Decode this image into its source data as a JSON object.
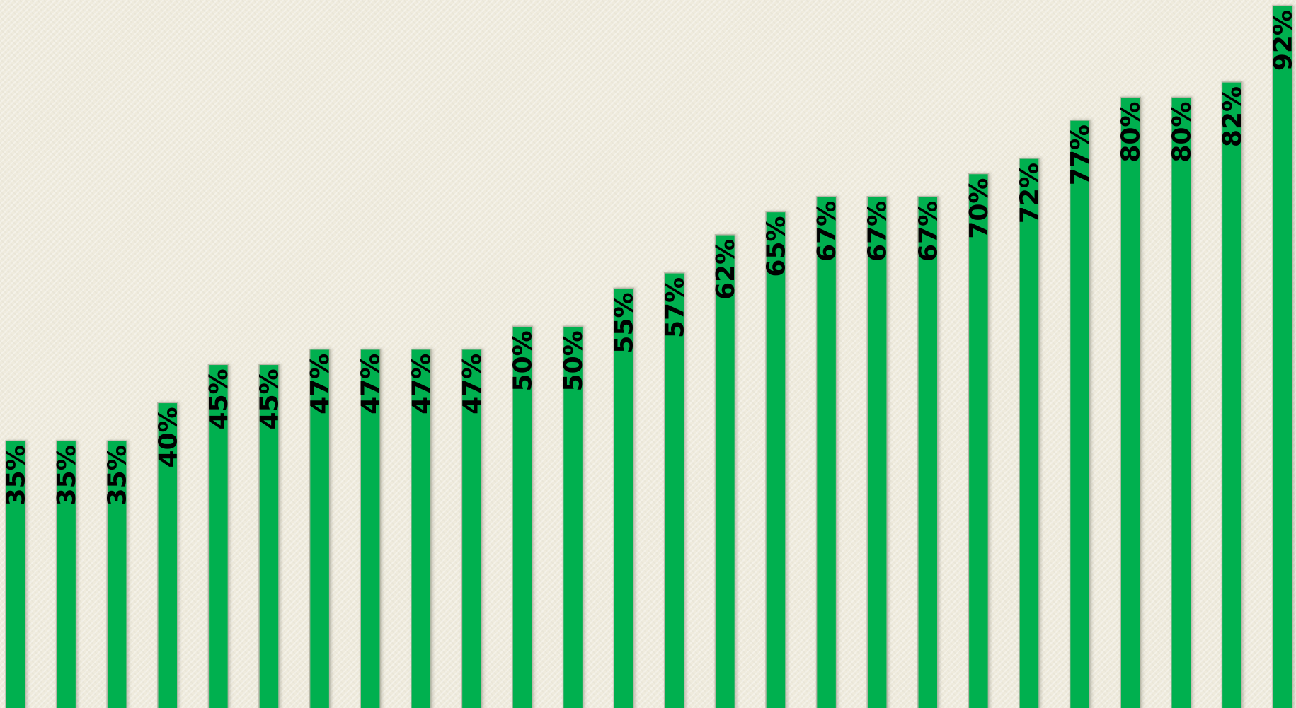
{
  "chart_data": {
    "type": "bar",
    "title": "",
    "xlabel": "",
    "ylabel": "",
    "ylim": [
      0,
      92
    ],
    "grid": false,
    "legend": "none",
    "values": [
      35,
      35,
      35,
      40,
      45,
      45,
      47,
      47,
      47,
      47,
      50,
      50,
      55,
      57,
      62,
      65,
      67,
      67,
      67,
      70,
      72,
      77,
      80,
      80,
      82,
      92
    ],
    "data_labels": [
      "35%",
      "35%",
      "35%",
      "40%",
      "45%",
      "45%",
      "47%",
      "47%",
      "47%",
      "47%",
      "50%",
      "50%",
      "55%",
      "57%",
      "62%",
      "65%",
      "67%",
      "67%",
      "67%",
      "70%",
      "72%",
      "77%",
      "80%",
      "80%",
      "82%",
      "92%"
    ],
    "colors": {
      "bar": "#00b050",
      "bar_edge": "#b8b8a8",
      "label": "#000000",
      "background": "#efebdd"
    }
  }
}
